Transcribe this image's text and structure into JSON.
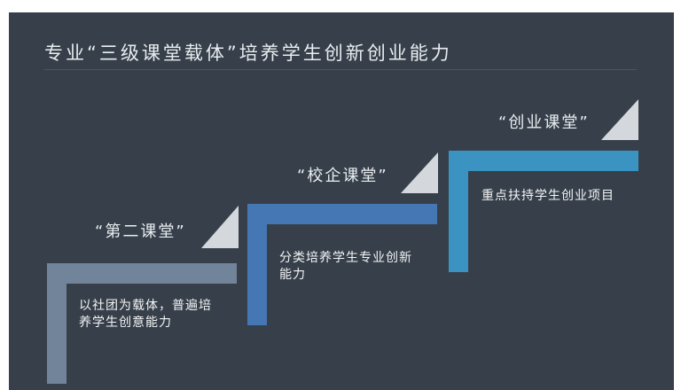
{
  "title": "专业“三级课堂载体”培养学生创新创业能力",
  "colors": {
    "background": "#37404a",
    "step1": "#72849a",
    "step2": "#4477b3",
    "step3": "#3b93c2",
    "triangle": "#d4d8dc"
  },
  "steps": [
    {
      "label": "“第二课堂”",
      "desc": "以社团为载体，普遍培养学生创意能力"
    },
    {
      "label": "“校企课堂”",
      "desc": "分类培养学生专业创新能力"
    },
    {
      "label": "“创业课堂”",
      "desc": "重点扶持学生创业项目"
    }
  ]
}
